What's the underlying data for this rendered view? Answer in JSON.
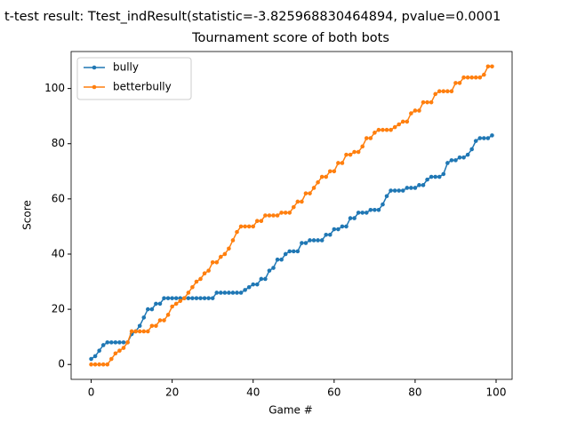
{
  "chart_data": {
    "type": "line",
    "suptitle": "t-test result: Ttest_indResult(statistic=-3.825968830464894, pvalue=0.0001",
    "title": "Tournament score of both bots",
    "xlabel": "Game #",
    "ylabel": "Score",
    "x": [
      0,
      1,
      2,
      3,
      4,
      5,
      6,
      7,
      8,
      9,
      10,
      11,
      12,
      13,
      14,
      15,
      16,
      17,
      18,
      19,
      20,
      21,
      22,
      23,
      24,
      25,
      26,
      27,
      28,
      29,
      30,
      31,
      32,
      33,
      34,
      35,
      36,
      37,
      38,
      39,
      40,
      41,
      42,
      43,
      44,
      45,
      46,
      47,
      48,
      49,
      50,
      51,
      52,
      53,
      54,
      55,
      56,
      57,
      58,
      59,
      60,
      61,
      62,
      63,
      64,
      65,
      66,
      67,
      68,
      69,
      70,
      71,
      72,
      73,
      74,
      75,
      76,
      77,
      78,
      79,
      80,
      81,
      82,
      83,
      84,
      85,
      86,
      87,
      88,
      89,
      90,
      91,
      92,
      93,
      94,
      95,
      96,
      97,
      98,
      99
    ],
    "series": [
      {
        "name": "bully",
        "color": "#1f77b4",
        "values": [
          2,
          3,
          5,
          7,
          8,
          8,
          8,
          8,
          8,
          8,
          11,
          12,
          14,
          17,
          20,
          20,
          22,
          22,
          24,
          24,
          24,
          24,
          24,
          24,
          24,
          24,
          24,
          24,
          24,
          24,
          24,
          26,
          26,
          26,
          26,
          26,
          26,
          26,
          27,
          28,
          29,
          29,
          31,
          31,
          34,
          35,
          38,
          38,
          40,
          41,
          41,
          41,
          44,
          44,
          45,
          45,
          45,
          45,
          47,
          47,
          49,
          49,
          50,
          50,
          53,
          53,
          55,
          55,
          55,
          56,
          56,
          56,
          58,
          61,
          63,
          63,
          63,
          63,
          64,
          64,
          64,
          65,
          65,
          67,
          68,
          68,
          68,
          69,
          73,
          74,
          74,
          75,
          75,
          76,
          78,
          81,
          82,
          82,
          82,
          83
        ]
      },
      {
        "name": "betterbully",
        "color": "#ff7f0e",
        "values": [
          0,
          0,
          0,
          0,
          0,
          2,
          4,
          5,
          6,
          8,
          12,
          12,
          12,
          12,
          12,
          14,
          14,
          16,
          16,
          18,
          21,
          22,
          23,
          24,
          26,
          28,
          30,
          31,
          33,
          34,
          37,
          37,
          39,
          40,
          42,
          45,
          48,
          50,
          50,
          50,
          50,
          52,
          52,
          54,
          54,
          54,
          54,
          55,
          55,
          55,
          57,
          59,
          59,
          62,
          62,
          64,
          66,
          68,
          68,
          70,
          70,
          73,
          73,
          76,
          76,
          77,
          77,
          79,
          82,
          82,
          84,
          85,
          85,
          85,
          85,
          86,
          87,
          88,
          88,
          91,
          92,
          92,
          95,
          95,
          95,
          98,
          99,
          99,
          99,
          99,
          102,
          102,
          104,
          104,
          104,
          104,
          104,
          105,
          108,
          108
        ]
      }
    ],
    "xlim": [
      -4.95,
      103.95
    ],
    "ylim": [
      -5.4,
      113.4
    ],
    "xticks": [
      0,
      20,
      40,
      60,
      80,
      100
    ],
    "yticks": [
      0,
      20,
      40,
      60,
      80,
      100
    ],
    "legend": "upper left"
  }
}
